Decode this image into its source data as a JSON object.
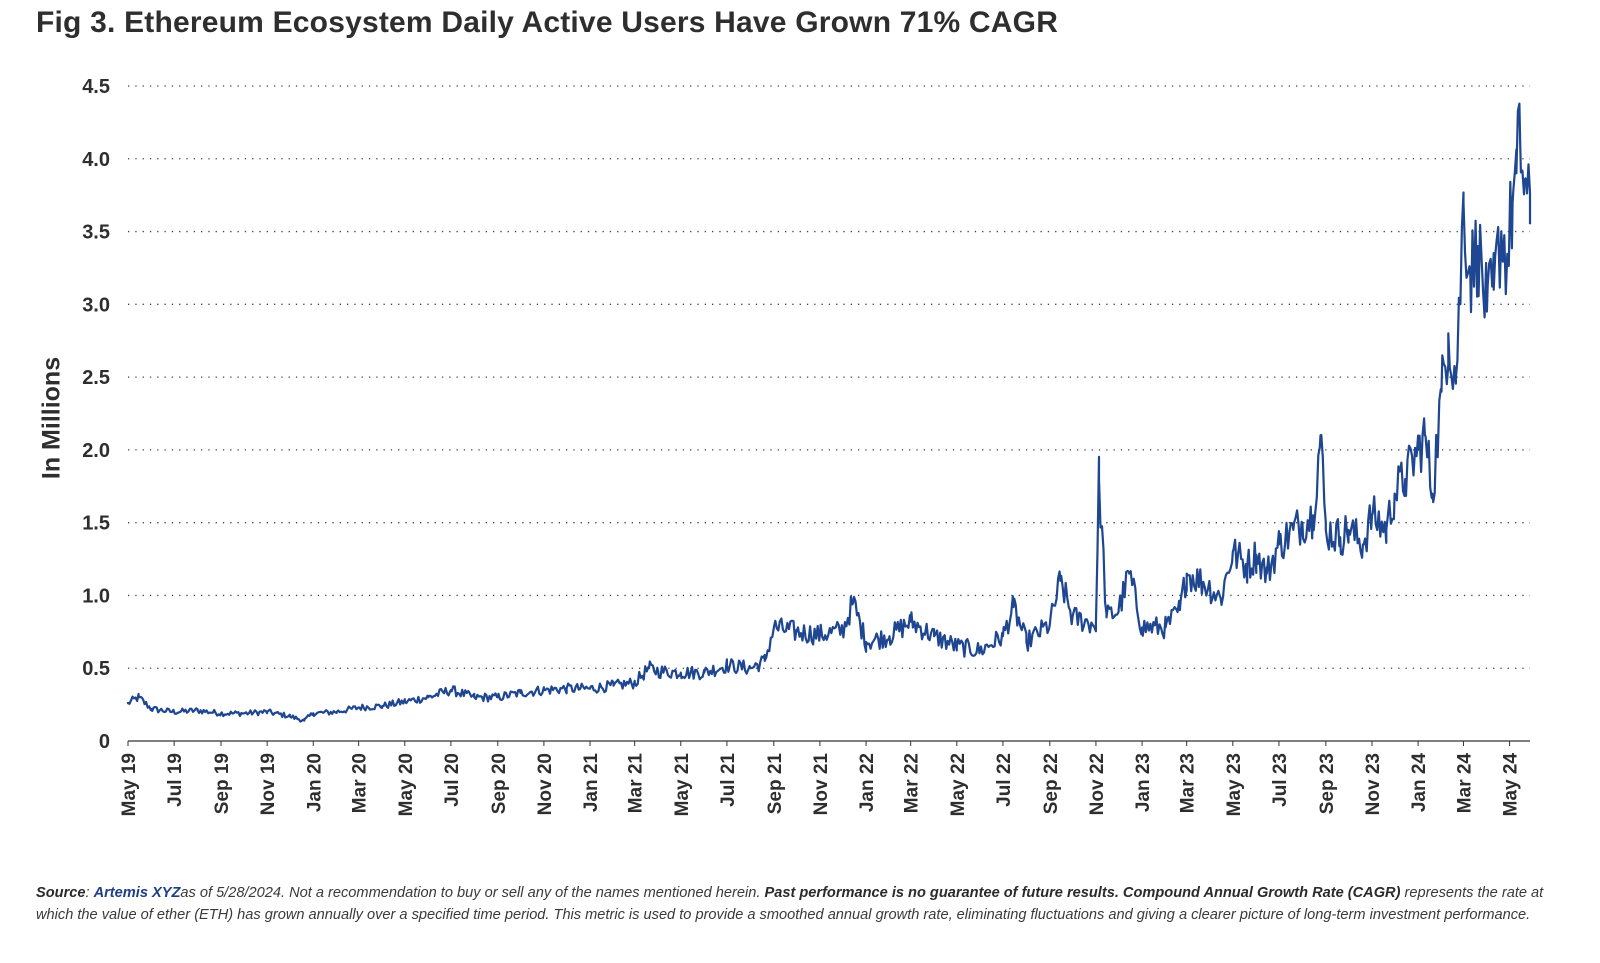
{
  "title": "Fig 3. Ethereum Ecosystem Daily Active Users Have Grown 71% CAGR",
  "colors": {
    "line": "#1f4690",
    "text": "#2e2e2e",
    "grid": "#444444",
    "source_link": "#1f3f84"
  },
  "footnote": {
    "source_label": "Source",
    "source_sep": ": ",
    "source_name": "Artemis XYZ",
    "text_1": "as of 5/28/2024. Not a recommendation to buy or sell any of the names mentioned herein. ",
    "bold_text": "Past performance is no guarantee of future results. Compound Annual Growth Rate (CAGR)",
    "text_2": " represents the rate at which the value of ether (ETH) has grown annually over a specified time period. This metric is used to provide a smoothed annual growth rate, eliminating fluctuations and giving a clearer picture of long-term investment performance."
  },
  "chart_data": {
    "type": "line",
    "title": "Fig 3. Ethereum Ecosystem Daily Active Users Have Grown 71% CAGR",
    "xlabel": "",
    "ylabel": "In Millions",
    "ylim": [
      0,
      4.5
    ],
    "yticks": [
      0,
      0.5,
      1.0,
      1.5,
      2.0,
      2.5,
      3.0,
      3.5,
      4.0,
      4.5
    ],
    "ytick_labels": [
      "0",
      "0.5",
      "1.0",
      "1.5",
      "2.0",
      "2.5",
      "3.0",
      "3.5",
      "4.0",
      "4.5"
    ],
    "xlim": [
      "2019-05-01",
      "2024-05-28"
    ],
    "xtick_labels": [
      "May 19",
      "Jul 19",
      "Sep 19",
      "Nov 19",
      "Jan 20",
      "Mar 20",
      "May 20",
      "Jul 20",
      "Sep 20",
      "Nov 20",
      "Jan 21",
      "Mar 21",
      "May 21",
      "Jul 21",
      "Sep 21",
      "Nov 21",
      "Jan 22",
      "Mar 22",
      "May 22",
      "Jul 22",
      "Sep 22",
      "Nov 22",
      "Jan 23",
      "Mar 23",
      "May 23",
      "Jul 23",
      "Sep 23",
      "Nov 23",
      "Jan 24",
      "Mar 24",
      "May 24"
    ],
    "grid": "horizontal dotted",
    "series": [
      {
        "x": [
          "2019-05-01",
          "2019-05-15",
          "2019-06-01",
          "2019-07-01",
          "2019-08-01",
          "2019-09-01",
          "2019-10-01",
          "2019-11-01",
          "2019-12-01",
          "2019-12-20",
          "2020-01-01",
          "2020-02-01",
          "2020-03-01",
          "2020-04-01",
          "2020-05-01",
          "2020-06-01",
          "2020-07-01",
          "2020-08-01",
          "2020-09-01",
          "2020-10-01",
          "2020-11-01",
          "2020-12-01",
          "2021-01-01",
          "2021-02-01",
          "2021-03-01",
          "2021-03-20",
          "2021-04-01",
          "2021-05-01",
          "2021-06-01",
          "2021-07-01",
          "2021-08-01",
          "2021-08-20",
          "2021-09-01",
          "2021-10-01",
          "2021-11-01",
          "2021-12-01",
          "2021-12-15",
          "2022-01-01",
          "2022-02-01",
          "2022-03-01",
          "2022-04-01",
          "2022-05-01",
          "2022-06-01",
          "2022-07-01",
          "2022-07-15",
          "2022-08-01",
          "2022-09-01",
          "2022-09-15",
          "2022-10-01",
          "2022-11-01",
          "2022-11-05",
          "2022-11-15",
          "2022-12-01",
          "2022-12-15",
          "2023-01-01",
          "2023-02-01",
          "2023-02-20",
          "2023-03-01",
          "2023-03-20",
          "2023-04-01",
          "2023-04-15",
          "2023-05-01",
          "2023-05-20",
          "2023-06-01",
          "2023-06-15",
          "2023-07-01",
          "2023-07-20",
          "2023-08-01",
          "2023-08-15",
          "2023-08-25",
          "2023-09-01",
          "2023-09-20",
          "2023-10-01",
          "2023-10-20",
          "2023-11-01",
          "2023-11-20",
          "2023-12-01",
          "2023-12-15",
          "2024-01-01",
          "2024-01-10",
          "2024-01-20",
          "2024-02-01",
          "2024-02-10",
          "2024-02-20",
          "2024-02-25",
          "2024-03-01",
          "2024-03-10",
          "2024-03-20",
          "2024-04-01",
          "2024-04-10",
          "2024-04-20",
          "2024-04-28",
          "2024-05-05",
          "2024-05-10",
          "2024-05-15",
          "2024-05-20",
          "2024-05-28"
        ],
        "values": [
          0.26,
          0.3,
          0.22,
          0.2,
          0.21,
          0.19,
          0.19,
          0.2,
          0.17,
          0.14,
          0.19,
          0.2,
          0.23,
          0.24,
          0.27,
          0.3,
          0.35,
          0.3,
          0.3,
          0.33,
          0.35,
          0.36,
          0.36,
          0.38,
          0.4,
          0.5,
          0.48,
          0.47,
          0.47,
          0.52,
          0.5,
          0.55,
          0.78,
          0.75,
          0.73,
          0.76,
          0.95,
          0.68,
          0.72,
          0.82,
          0.72,
          0.65,
          0.62,
          0.72,
          0.92,
          0.68,
          0.8,
          1.1,
          0.85,
          0.8,
          1.8,
          0.85,
          0.9,
          1.15,
          0.78,
          0.78,
          0.9,
          1.15,
          1.1,
          1.05,
          0.98,
          1.3,
          1.2,
          1.28,
          1.15,
          1.35,
          1.45,
          1.5,
          1.55,
          2.1,
          1.45,
          1.4,
          1.45,
          1.35,
          1.55,
          1.45,
          1.7,
          1.8,
          2.0,
          2.1,
          1.7,
          2.4,
          2.8,
          2.5,
          3.0,
          3.7,
          3.2,
          3.4,
          2.95,
          3.1,
          3.5,
          3.3,
          3.7,
          3.9,
          4.1,
          3.85,
          3.55
        ]
      }
    ]
  }
}
